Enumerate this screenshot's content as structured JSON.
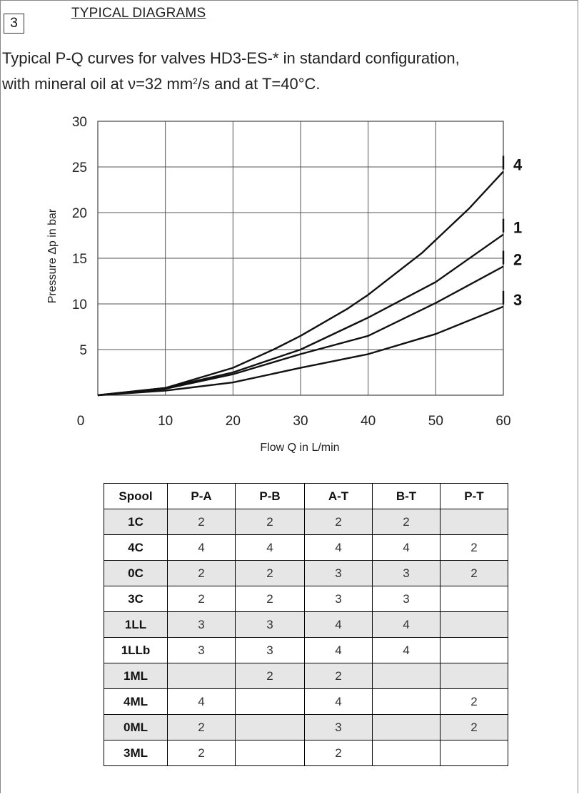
{
  "section": {
    "number": "3",
    "title": "TYPICAL DIAGRAMS",
    "intro_line1": "Typical P-Q curves for valves HD3-ES-* in standard configuration,",
    "intro_line2_a": "with mineral oil at ν=32 mm",
    "intro_line2_sup": "2",
    "intro_line2_b": "/s and at T=40°C."
  },
  "chart_data": {
    "type": "line",
    "xlabel": "Flow Q in L/min",
    "ylabel": "Pressure Δp in bar",
    "xlim": [
      0,
      60
    ],
    "ylim": [
      0,
      30
    ],
    "xticks": [
      0,
      10,
      20,
      30,
      40,
      50,
      60
    ],
    "yticks": [
      5,
      10,
      15,
      20,
      25,
      30
    ],
    "grid": true,
    "series": [
      {
        "name": "4",
        "x": [
          0,
          10,
          20,
          26,
          30,
          37,
          40,
          48,
          55,
          60
        ],
        "y": [
          0,
          0.8,
          3,
          5,
          6.5,
          9.5,
          11,
          15.6,
          20.5,
          24.5
        ]
      },
      {
        "name": "1",
        "x": [
          0,
          10,
          20,
          30,
          40,
          50,
          60
        ],
        "y": [
          0,
          0.8,
          2.5,
          5,
          8.5,
          12.4,
          17.6
        ]
      },
      {
        "name": "2",
        "x": [
          0,
          10,
          20,
          30,
          40,
          50,
          60
        ],
        "y": [
          0,
          0.7,
          2.3,
          4.5,
          6.5,
          10.1,
          14.1
        ]
      },
      {
        "name": "3",
        "x": [
          0,
          10,
          20,
          30,
          40,
          50,
          60
        ],
        "y": [
          0,
          0.5,
          1.4,
          3,
          4.5,
          6.7,
          9.7
        ]
      }
    ]
  },
  "table": {
    "headers": [
      "Spool",
      "P-A",
      "P-B",
      "A-T",
      "B-T",
      "P-T"
    ],
    "rows": [
      [
        "1C",
        "2",
        "2",
        "2",
        "2",
        ""
      ],
      [
        "4C",
        "4",
        "4",
        "4",
        "4",
        "2"
      ],
      [
        "0C",
        "2",
        "2",
        "3",
        "3",
        "2"
      ],
      [
        "3C",
        "2",
        "2",
        "3",
        "3",
        ""
      ],
      [
        "1LL",
        "3",
        "3",
        "4",
        "4",
        ""
      ],
      [
        "1LLb",
        "3",
        "3",
        "4",
        "4",
        ""
      ],
      [
        "1ML",
        "",
        "2",
        "2",
        "",
        ""
      ],
      [
        "4ML",
        "4",
        "",
        "4",
        "",
        "2"
      ],
      [
        "0ML",
        "2",
        "",
        "3",
        "",
        "2"
      ],
      [
        "3ML",
        "2",
        "",
        "2",
        "",
        ""
      ]
    ],
    "shaded_rows": [
      0,
      2,
      4,
      6,
      8
    ]
  }
}
